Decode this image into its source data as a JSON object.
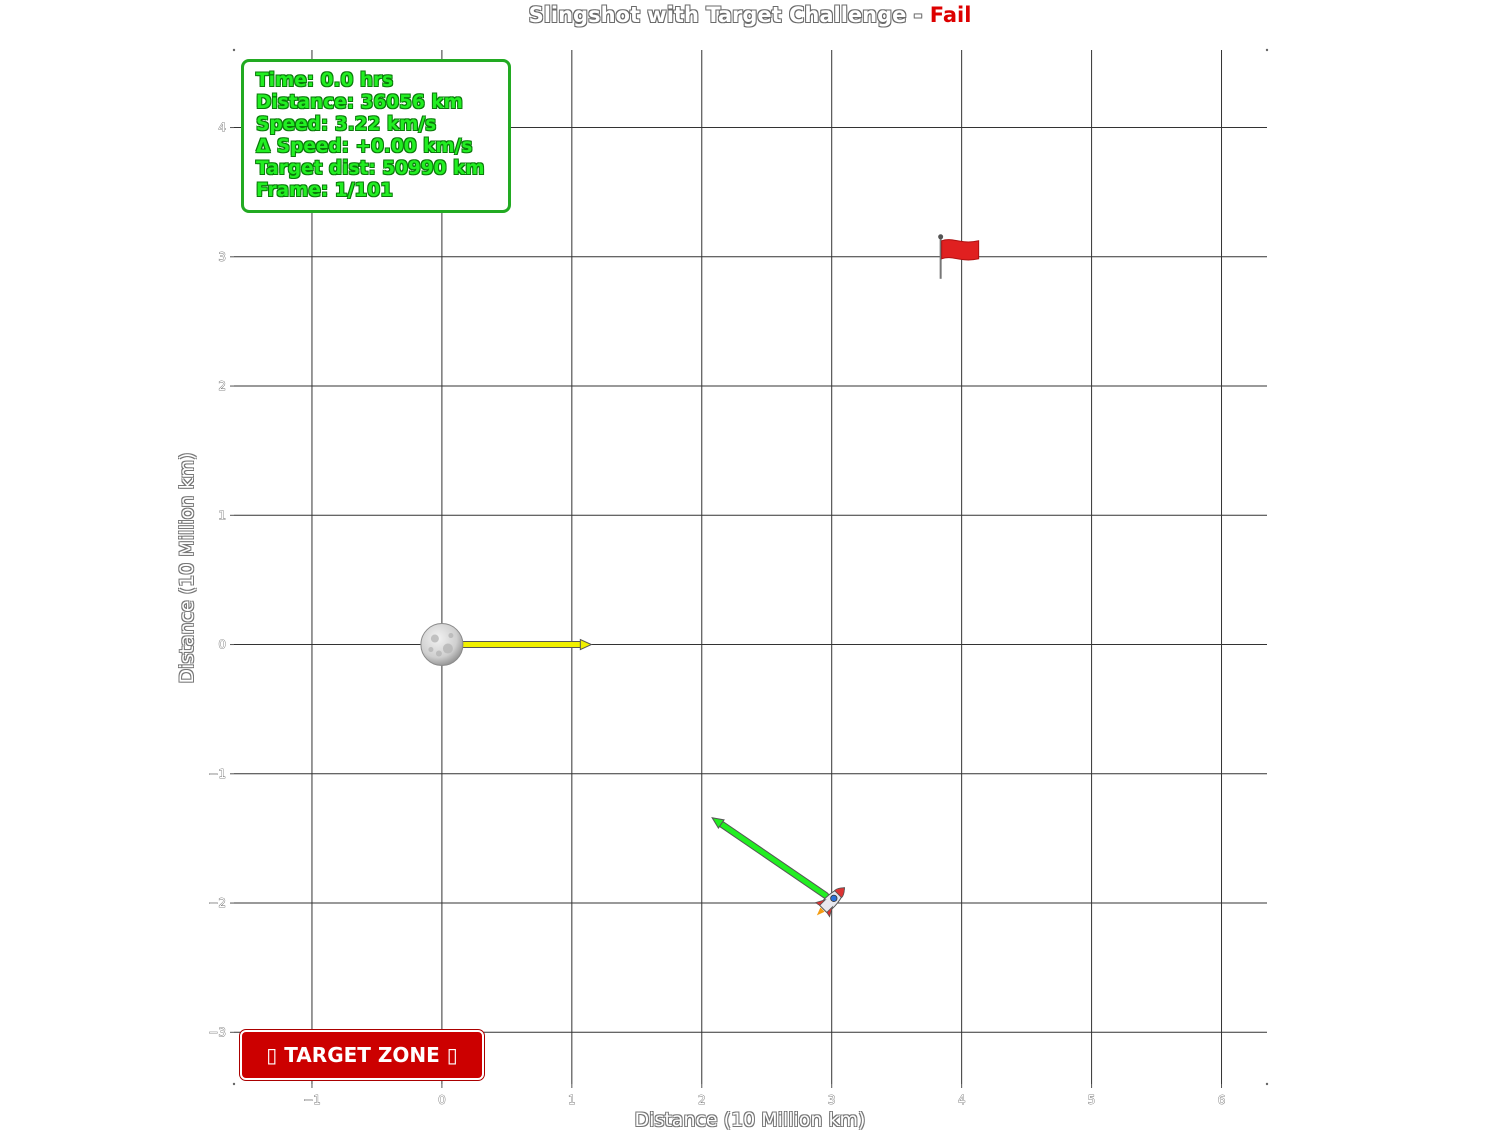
{
  "title": {
    "text": "Slingshot with Target Challenge - ",
    "status": "Fail",
    "status_color": "#dd0000"
  },
  "info_box": {
    "lines": [
      "Time: 0.0 hrs",
      "Distance: 36056 km",
      "Speed: 3.22 km/s",
      "Δ Speed: +0.00 km/s",
      "Target dist: 50990 km",
      "Frame: 1/101"
    ],
    "text_color": "#22ee22",
    "border_color": "#22aa22"
  },
  "target_zone_button": {
    "label": "▯ TARGET ZONE ▯",
    "color": "#cc0000"
  },
  "chart_data": {
    "type": "scatter",
    "xlabel": "Distance (10 Million km)",
    "ylabel": "Distance (10 Million km)",
    "xlim": [
      -1.6,
      6.35
    ],
    "ylim": [
      -3.4,
      4.6
    ],
    "xticks": [
      -1,
      0,
      1,
      2,
      3,
      4,
      5,
      6
    ],
    "yticks": [
      -3,
      -2,
      -1,
      0,
      1,
      2,
      3,
      4
    ],
    "xtick_labels": [
      "−1",
      "0",
      "1",
      "2",
      "3",
      "4",
      "5",
      "6"
    ],
    "ytick_labels": [
      "−3",
      "−2",
      "−1",
      "0",
      "1",
      "2",
      "3",
      "4"
    ],
    "grid": true,
    "planet": {
      "x": 0,
      "y": 0,
      "icon": "moon-icon",
      "velocity_arrow": {
        "to_x": 1.15,
        "to_y": 0,
        "color": "#f0f000"
      }
    },
    "spacecraft": {
      "x": 3.0,
      "y": -1.98,
      "icon": "rocket-icon",
      "velocity_arrow": {
        "to_x": 2.08,
        "to_y": -1.34,
        "color": "#22ee22"
      }
    },
    "target": {
      "x": 3.9,
      "y": 3.0,
      "icon": "red-flag-icon"
    }
  }
}
